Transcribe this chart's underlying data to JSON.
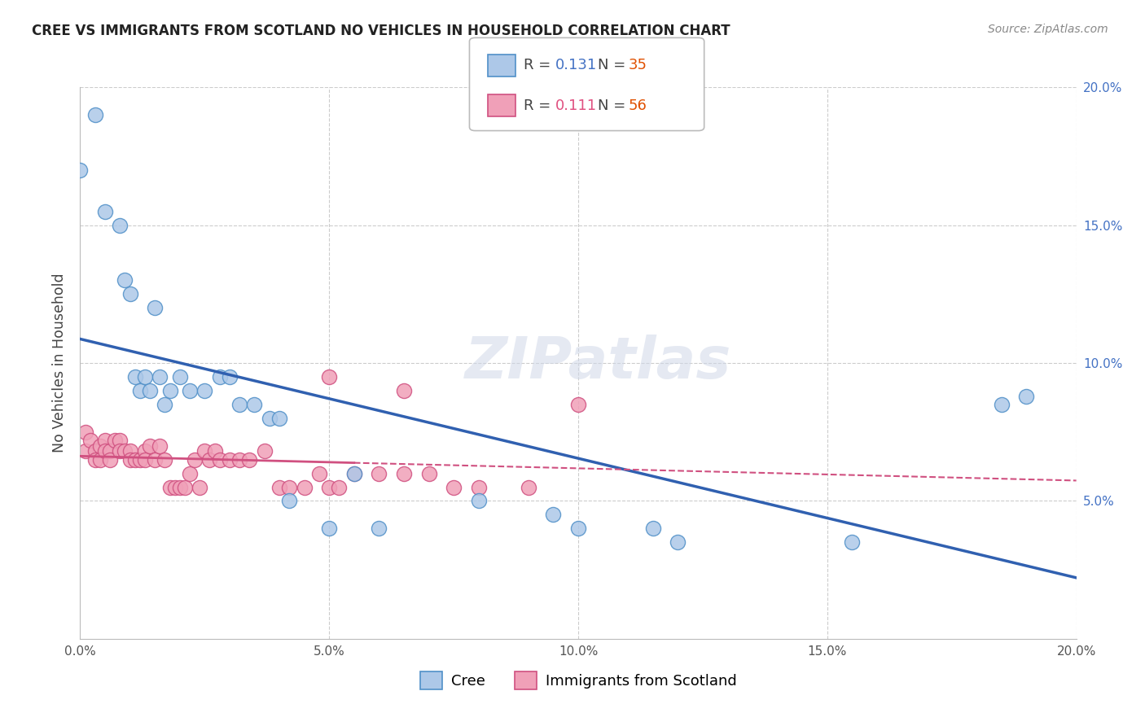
{
  "title": "CREE VS IMMIGRANTS FROM SCOTLAND NO VEHICLES IN HOUSEHOLD CORRELATION CHART",
  "source": "Source: ZipAtlas.com",
  "ylabel": "No Vehicles in Household",
  "xlim": [
    0.0,
    0.2
  ],
  "ylim": [
    0.0,
    0.2
  ],
  "xticks": [
    0.0,
    0.05,
    0.1,
    0.15,
    0.2
  ],
  "yticks": [
    0.0,
    0.05,
    0.1,
    0.15,
    0.2
  ],
  "xtick_labels": [
    "0.0%",
    "5.0%",
    "10.0%",
    "15.0%",
    "20.0%"
  ],
  "ytick_labels": [
    "",
    "5.0%",
    "10.0%",
    "15.0%",
    "20.0%"
  ],
  "R_cree": 0.131,
  "N_cree": 35,
  "R_scot": 0.111,
  "N_scot": 56,
  "label_cree": "Cree",
  "label_scot": "Immigrants from Scotland",
  "watermark": "ZIPatlas",
  "cree_x": [
    0.0,
    0.003,
    0.005,
    0.008,
    0.009,
    0.01,
    0.011,
    0.012,
    0.013,
    0.014,
    0.015,
    0.016,
    0.017,
    0.018,
    0.02,
    0.022,
    0.025,
    0.028,
    0.03,
    0.032,
    0.035,
    0.038,
    0.04,
    0.042,
    0.05,
    0.055,
    0.06,
    0.08,
    0.095,
    0.1,
    0.115,
    0.12,
    0.155,
    0.185,
    0.19
  ],
  "cree_y": [
    0.17,
    0.19,
    0.155,
    0.15,
    0.13,
    0.125,
    0.095,
    0.09,
    0.095,
    0.09,
    0.12,
    0.095,
    0.085,
    0.09,
    0.095,
    0.09,
    0.09,
    0.095,
    0.095,
    0.085,
    0.085,
    0.08,
    0.08,
    0.05,
    0.04,
    0.06,
    0.04,
    0.05,
    0.045,
    0.04,
    0.04,
    0.035,
    0.035,
    0.085,
    0.088
  ],
  "scot_x": [
    0.001,
    0.001,
    0.002,
    0.003,
    0.003,
    0.004,
    0.004,
    0.005,
    0.005,
    0.006,
    0.006,
    0.007,
    0.008,
    0.008,
    0.009,
    0.01,
    0.01,
    0.011,
    0.012,
    0.013,
    0.013,
    0.014,
    0.015,
    0.016,
    0.017,
    0.018,
    0.019,
    0.02,
    0.021,
    0.022,
    0.023,
    0.024,
    0.025,
    0.026,
    0.027,
    0.028,
    0.03,
    0.032,
    0.034,
    0.037,
    0.04,
    0.042,
    0.045,
    0.048,
    0.05,
    0.052,
    0.055,
    0.06,
    0.065,
    0.07,
    0.075,
    0.08,
    0.09,
    0.05,
    0.065,
    0.1
  ],
  "scot_y": [
    0.075,
    0.068,
    0.072,
    0.068,
    0.065,
    0.07,
    0.065,
    0.072,
    0.068,
    0.068,
    0.065,
    0.072,
    0.072,
    0.068,
    0.068,
    0.068,
    0.065,
    0.065,
    0.065,
    0.068,
    0.065,
    0.07,
    0.065,
    0.07,
    0.065,
    0.055,
    0.055,
    0.055,
    0.055,
    0.06,
    0.065,
    0.055,
    0.068,
    0.065,
    0.068,
    0.065,
    0.065,
    0.065,
    0.065,
    0.068,
    0.055,
    0.055,
    0.055,
    0.06,
    0.055,
    0.055,
    0.06,
    0.06,
    0.06,
    0.06,
    0.055,
    0.055,
    0.055,
    0.095,
    0.09,
    0.085
  ],
  "cree_fill": "#adc8e8",
  "cree_edge": "#5090c8",
  "scot_fill": "#f0a0b8",
  "scot_edge": "#d05080",
  "trend_cree_color": "#3060b0",
  "trend_scot_color": "#d05080",
  "bg_color": "#ffffff",
  "grid_color": "#cccccc",
  "title_color": "#222222",
  "source_color": "#888888",
  "ylabel_color": "#444444",
  "ytick_color": "#4472c4",
  "xtick_color": "#555555",
  "legend_R_cree_color": "#4472c4",
  "legend_N_cree_color": "#e05000",
  "legend_R_scot_color": "#e05080",
  "legend_N_scot_color": "#e05000"
}
